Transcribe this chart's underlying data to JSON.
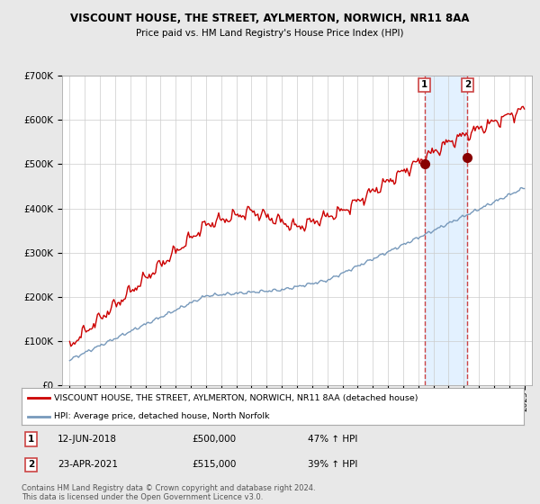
{
  "title": "VISCOUNT HOUSE, THE STREET, AYLMERTON, NORWICH, NR11 8AA",
  "subtitle": "Price paid vs. HM Land Registry's House Price Index (HPI)",
  "background_color": "#e8e8e8",
  "plot_bg_color": "#ffffff",
  "grid_color": "#cccccc",
  "sale1_date_label": "12-JUN-2018",
  "sale1_price": 500000,
  "sale1_pct": "47% ↑ HPI",
  "sale2_date_label": "23-APR-2021",
  "sale2_price": 515000,
  "sale2_pct": "39% ↑ HPI",
  "legend_label_red": "VISCOUNT HOUSE, THE STREET, AYLMERTON, NORWICH, NR11 8AA (detached house)",
  "legend_label_blue": "HPI: Average price, detached house, North Norfolk",
  "footnote": "Contains HM Land Registry data © Crown copyright and database right 2024.\nThis data is licensed under the Open Government Licence v3.0.",
  "ylim": [
    0,
    700000
  ],
  "yticks": [
    0,
    100000,
    200000,
    300000,
    400000,
    500000,
    600000,
    700000
  ],
  "sale1_x": 2018.44,
  "sale2_x": 2021.31,
  "red_color": "#cc0000",
  "blue_color": "#7799bb",
  "vline_color": "#cc4444",
  "shade_color": "#ddeeff"
}
